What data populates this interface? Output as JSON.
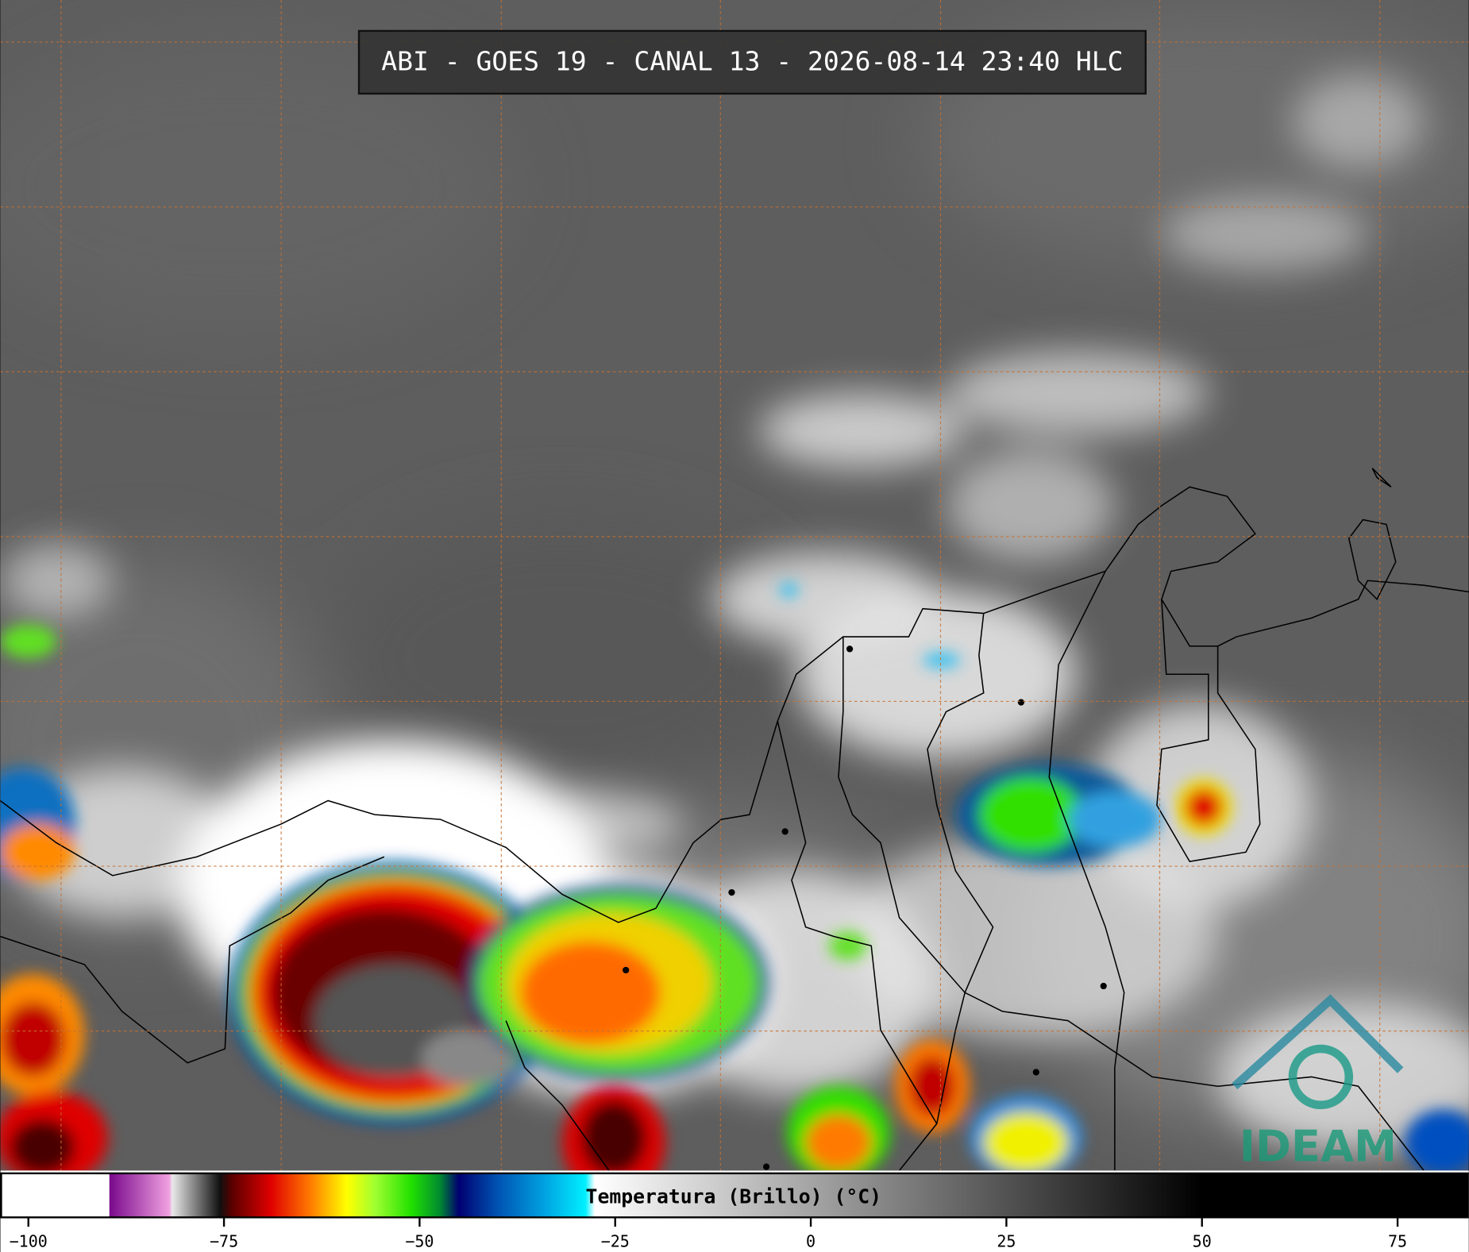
{
  "header": {
    "title": "ABI - GOES 19 - CANAL 13 - 2026-08-14 23:40 HLC"
  },
  "colorbar": {
    "label": "Temperatura (Brillo) (°C)",
    "xlim": [
      -103.6,
      84.1
    ],
    "xticks": [
      {
        "value": -100,
        "label": "−100"
      },
      {
        "value": -75,
        "label": "−75"
      },
      {
        "value": -50,
        "label": "−50"
      },
      {
        "value": -25,
        "label": "−25"
      },
      0,
      25,
      50,
      75
    ],
    "stops": [
      {
        "value": -103.6,
        "color": "#ffffff"
      },
      {
        "value": -89.7,
        "color": "#ffffff"
      },
      {
        "value": -89.6,
        "color": "#7a0a8c"
      },
      {
        "value": -82,
        "color": "#f0a0e0"
      },
      {
        "value": -81.6,
        "color": "#e8e8e8"
      },
      {
        "value": -75.5,
        "color": "#101010"
      },
      {
        "value": -74,
        "color": "#5a0000"
      },
      {
        "value": -69,
        "color": "#e00000"
      },
      {
        "value": -64,
        "color": "#ff7a00"
      },
      {
        "value": -59.3,
        "color": "#ffff00"
      },
      {
        "value": -55.7,
        "color": "#a0ff30"
      },
      {
        "value": -51,
        "color": "#20e000"
      },
      {
        "value": -47.4,
        "color": "#008a30"
      },
      {
        "value": -45,
        "color": "#000070"
      },
      {
        "value": -40.2,
        "color": "#0050b0"
      },
      {
        "value": -34.2,
        "color": "#00a0e0"
      },
      {
        "value": -28.8,
        "color": "#00f0ff"
      },
      {
        "value": -27.6,
        "color": "#ffffff"
      },
      {
        "value": 50,
        "color": "#000000"
      },
      {
        "value": 84.1,
        "color": "#000000"
      }
    ]
  },
  "logo": {
    "text": "IDEAM"
  }
}
